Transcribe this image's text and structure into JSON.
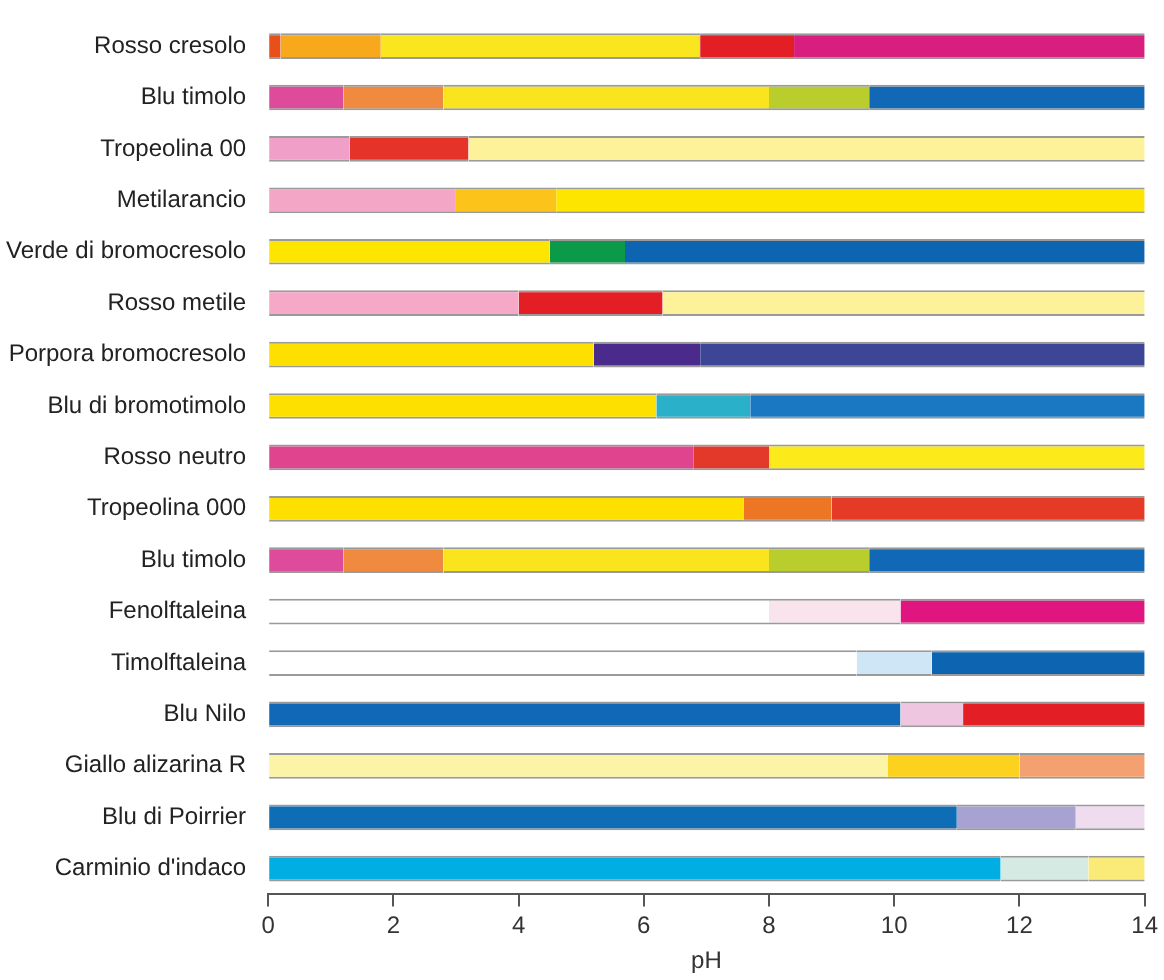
{
  "chart_data": {
    "type": "bar",
    "orientation": "horizontal",
    "stacked": true,
    "xlabel": "pH",
    "xlim": [
      0,
      14
    ],
    "xticks": [
      0,
      2,
      4,
      6,
      8,
      10,
      12,
      14
    ],
    "grid": false,
    "legend": false,
    "categories": [
      "Rosso cresolo",
      "Blu timolo",
      "Tropeolina 00",
      "Metilarancio",
      "Verde di bromocresolo",
      "Rosso metile",
      "Porpora bromocresolo",
      "Blu di bromotimolo",
      "Rosso neutro",
      "Tropeolina 000",
      "Blu timolo",
      "Fenolftaleina",
      "Timolftaleina",
      "Blu Nilo",
      "Giallo alizarina R",
      "Blu di Poirrier",
      "Carminio d'indaco"
    ],
    "series": [
      {
        "values": [
          0.2,
          1.2,
          1.3,
          3.0,
          4.5,
          4.0,
          5.2,
          6.2,
          6.8,
          7.6,
          1.2,
          8.0,
          9.4,
          10.1,
          9.9,
          11.0,
          11.7
        ],
        "colors": [
          "#e8501a",
          "#de4b9b",
          "#f0a0c8",
          "#f4a6c6",
          "#fde500",
          "#f5a8c8",
          "#fde000",
          "#fde000",
          "#e0448f",
          "#fde000",
          "#de4b9b",
          "#ffffff",
          "#ffffff",
          "#1068b6",
          "#fbf3a6",
          "#0d6db6",
          "#00aee4"
        ]
      },
      {
        "values": [
          1.6,
          1.6,
          1.9,
          1.6,
          1.2,
          2.3,
          1.7,
          1.5,
          1.2,
          1.4,
          1.6,
          2.1,
          1.2,
          1.0,
          2.1,
          1.9,
          1.4
        ],
        "colors": [
          "#f7a81b",
          "#ef8a3e",
          "#e5332a",
          "#fcc31a",
          "#0a9a48",
          "#e31e24",
          "#4a2a8a",
          "#2ab0c8",
          "#e3392a",
          "#ec7624",
          "#ef8a3e",
          "#f9e4ee",
          "#cfe6f6",
          "#efc6e0",
          "#fdd21e",
          "#a8a2d2",
          "#d4eae2"
        ]
      },
      {
        "values": [
          5.1,
          5.2,
          10.8,
          9.4,
          8.3,
          7.7,
          7.1,
          6.3,
          6.0,
          5.0,
          5.2,
          3.9,
          3.4,
          2.9,
          2.0,
          1.1,
          0.9
        ],
        "colors": [
          "#fae61e",
          "#fae41e",
          "#fdf29a",
          "#fde500",
          "#0d64b0",
          "#fdf29a",
          "#3d4596",
          "#1a78c2",
          "#fdea1a",
          "#e53a25",
          "#fae41e",
          "#e0157f",
          "#0d64b0",
          "#e31e24",
          "#f5a070",
          "#efdcef",
          "#faea78"
        ]
      },
      {
        "values": [
          1.5,
          1.6,
          null,
          null,
          null,
          null,
          null,
          null,
          null,
          null,
          1.6,
          null,
          null,
          null,
          null,
          null,
          null
        ],
        "colors": [
          "#e31e24",
          "#b9cd2d",
          null,
          null,
          null,
          null,
          null,
          null,
          null,
          null,
          "#b9cd2d",
          null,
          null,
          null,
          null,
          null,
          null
        ]
      },
      {
        "values": [
          5.6,
          4.4,
          null,
          null,
          null,
          null,
          null,
          null,
          null,
          null,
          4.4,
          null,
          null,
          null,
          null,
          null,
          null
        ],
        "colors": [
          "#d81e7f",
          "#1068b6",
          null,
          null,
          null,
          null,
          null,
          null,
          null,
          null,
          "#1068b6",
          null,
          null,
          null,
          null,
          null,
          null
        ]
      }
    ]
  }
}
